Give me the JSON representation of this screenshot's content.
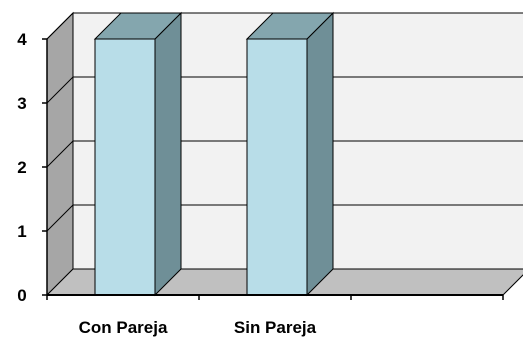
{
  "chart_data": {
    "type": "bar",
    "title": "",
    "xlabel": "",
    "ylabel": "",
    "categories": [
      "Con Pareja",
      "Sin Pareja",
      ""
    ],
    "values": [
      4,
      4,
      0
    ],
    "ylim": [
      0,
      4
    ],
    "y_ticks": [
      "0",
      "1",
      "2",
      "3",
      "4"
    ],
    "grid": true,
    "three_d": true,
    "colors": {
      "bar_front": "#b8dde8",
      "bar_side": "#6f8f97",
      "bar_top": "#84a6ae",
      "back_wall": "#f2f2f2",
      "side_wall": "#a6a6a6",
      "floor": "#c0c0c0",
      "grid": "#000000"
    }
  }
}
